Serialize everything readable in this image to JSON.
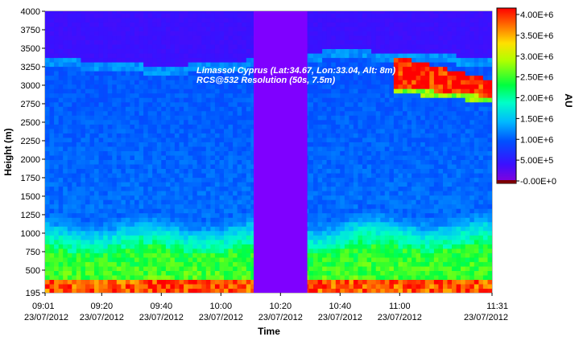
{
  "chart_data": {
    "type": "heatmap",
    "title": "",
    "xlabel": "Time",
    "ylabel": "Height (m)",
    "colorbar_label": "AU",
    "annotation": [
      "Limassol Cyprus (Lat:34.67, Lon:33.04, Alt: 8m)",
      "RCS@532 Resolution (50s, 7.5m)"
    ],
    "xlim": [
      "09:01",
      "11:31"
    ],
    "ylim": [
      195,
      4000
    ],
    "x_ticks": [
      {
        "time": "09:01",
        "date": "23/07/2012"
      },
      {
        "time": "09:20",
        "date": "23/07/2012"
      },
      {
        "time": "09:40",
        "date": "23/07/2012"
      },
      {
        "time": "10:00",
        "date": "23/07/2012"
      },
      {
        "time": "10:20",
        "date": "23/07/2012"
      },
      {
        "time": "10:40",
        "date": "23/07/2012"
      },
      {
        "time": "11:00",
        "date": "23/07/2012"
      },
      {
        "time": "11:31",
        "date": "23/07/2012"
      }
    ],
    "y_ticks": [
      195,
      500,
      750,
      1000,
      1250,
      1500,
      1750,
      2000,
      2250,
      2500,
      2750,
      3000,
      3250,
      3500,
      3750,
      4000
    ],
    "colorbar_ticks": [
      "-0.00E+0",
      "5.00E+5",
      "1.00E+6",
      "1.50E+6",
      "2.00E+6",
      "2.50E+6",
      "3.00E+6",
      "3.50E+6",
      "4.00E+6"
    ],
    "colorbar_range": [
      0,
      4200000
    ],
    "no_data_interval": [
      "10:11",
      "10:29"
    ],
    "features": {
      "surface_layer_top_m": 330,
      "aerosol_layer_top_m": 1050,
      "residual_layer_top_m": 3250,
      "cloud_base_m": 2950,
      "cloud_interval": [
        "10:57",
        "11:31"
      ]
    }
  }
}
